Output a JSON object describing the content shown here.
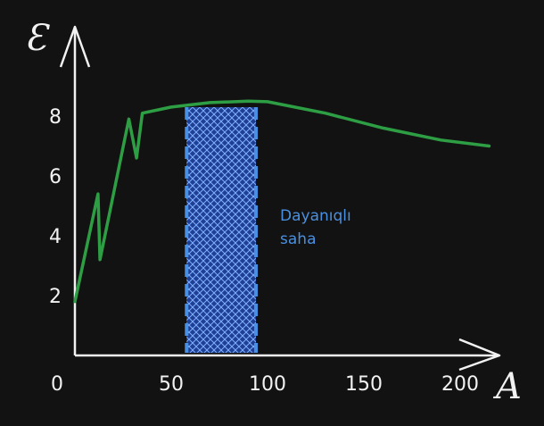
{
  "chart_data": {
    "type": "line",
    "xlabel": "A",
    "ylabel": "Ɛ",
    "xlim": [
      0,
      230
    ],
    "ylim": [
      0,
      10
    ],
    "x_ticks": [
      0,
      50,
      100,
      150,
      200
    ],
    "x_tick_labels": [
      "0",
      "50",
      "100",
      "150",
      "200"
    ],
    "y_ticks": [
      2,
      4,
      6,
      8
    ],
    "y_tick_labels": [
      "2",
      "4",
      "6",
      "8"
    ],
    "grid": false,
    "series": [
      {
        "color": "#2e9e44",
        "x": [
          0,
          12,
          13,
          28,
          32,
          35,
          50,
          70,
          90,
          100,
          130,
          160,
          190,
          215
        ],
        "y": [
          1.8,
          5.4,
          3.2,
          7.9,
          6.6,
          8.1,
          8.3,
          8.45,
          8.5,
          8.48,
          8.1,
          7.6,
          7.2,
          7.0
        ]
      }
    ],
    "shaded_region": {
      "x_start": 58,
      "x_end": 94,
      "fill_color": "#2a52be",
      "edge_color": "#4a90e2",
      "label_lines": [
        "Dayanıqlı",
        "saha"
      ]
    }
  }
}
